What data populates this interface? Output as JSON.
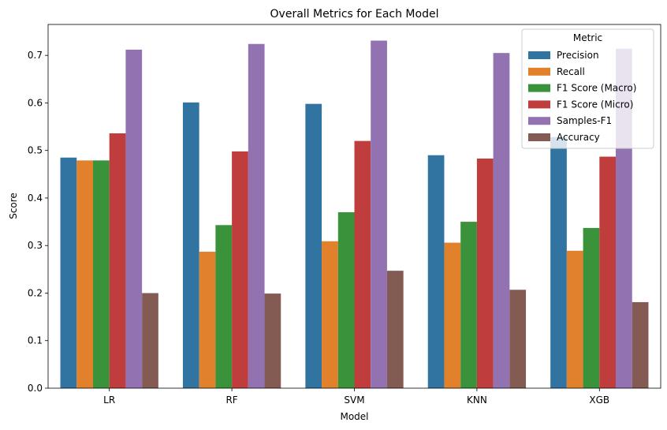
{
  "chart_data": {
    "type": "bar",
    "title": "Overall Metrics for Each Model",
    "xlabel": "Model",
    "ylabel": "Score",
    "ylim": [
      0,
      0.765
    ],
    "yticks": [
      "0.0",
      "0.1",
      "0.2",
      "0.3",
      "0.4",
      "0.5",
      "0.6",
      "0.7"
    ],
    "categories": [
      "LR",
      "RF",
      "SVM",
      "KNN",
      "XGB"
    ],
    "grid": false,
    "legend": {
      "title": "Metric",
      "placement": "top-right"
    },
    "series": [
      {
        "name": "Precision",
        "color": "#3274a1",
        "values": [
          0.485,
          0.601,
          0.598,
          0.49,
          0.528
        ]
      },
      {
        "name": "Recall",
        "color": "#e1812c",
        "values": [
          0.479,
          0.287,
          0.309,
          0.306,
          0.289
        ]
      },
      {
        "name": "F1 Score (Macro)",
        "color": "#3a923a",
        "values": [
          0.479,
          0.343,
          0.37,
          0.35,
          0.337
        ]
      },
      {
        "name": "F1 Score (Micro)",
        "color": "#c03d3e",
        "values": [
          0.536,
          0.498,
          0.52,
          0.483,
          0.487
        ]
      },
      {
        "name": "Samples-F1",
        "color": "#9372b2",
        "values": [
          0.712,
          0.724,
          0.731,
          0.705,
          0.714
        ]
      },
      {
        "name": "Accuracy",
        "color": "#845b53",
        "values": [
          0.2,
          0.199,
          0.247,
          0.207,
          0.181
        ]
      }
    ]
  }
}
